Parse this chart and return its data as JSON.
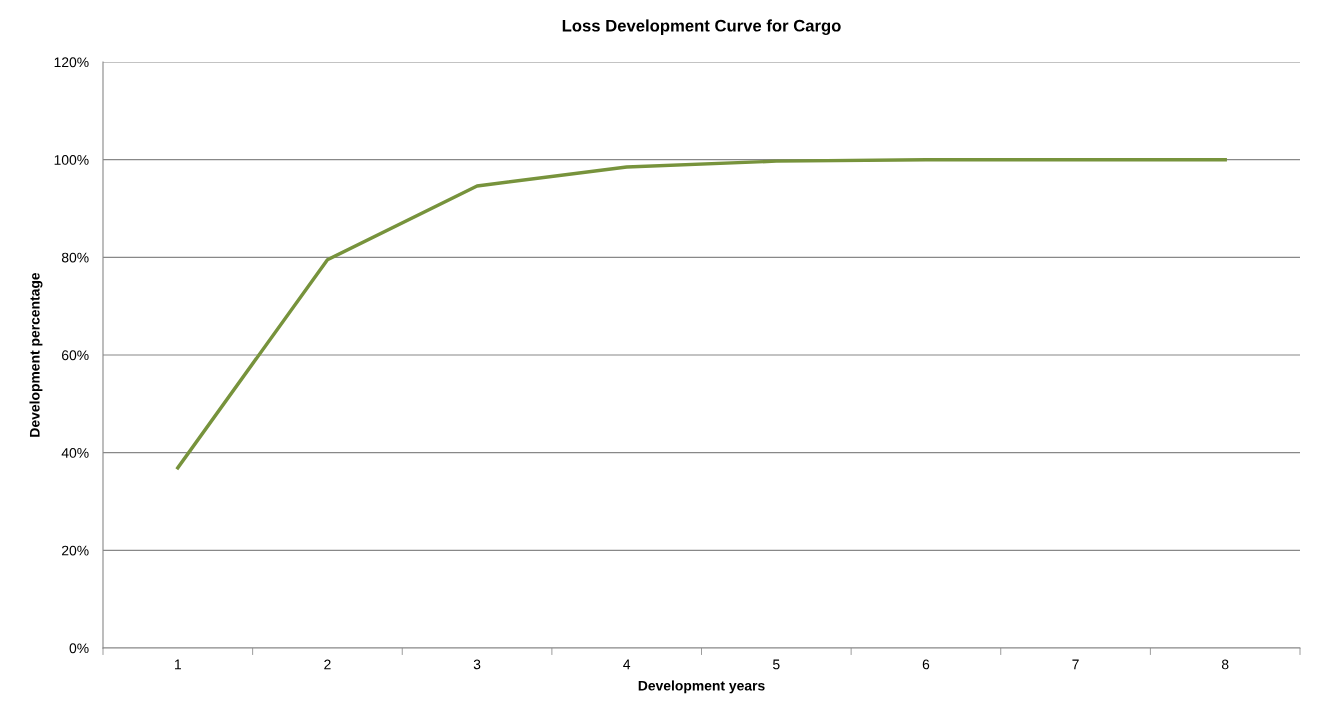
{
  "chart_data": {
    "type": "line",
    "title": "Loss Development Curve for Cargo",
    "xlabel": "Development years",
    "ylabel": "Development percentage",
    "categories": [
      "1",
      "2",
      "3",
      "4",
      "5",
      "6",
      "7",
      "8"
    ],
    "series": [
      {
        "color": "#77933c",
        "values": [
          36.9,
          79.5,
          94.6,
          98.5,
          99.7,
          100,
          100,
          100
        ]
      }
    ],
    "ylim": [
      0,
      120
    ],
    "yticks": [
      {
        "value": 0,
        "label": "0%"
      },
      {
        "value": 20,
        "label": "20%"
      },
      {
        "value": 40,
        "label": "40%"
      },
      {
        "value": 60,
        "label": "60%"
      },
      {
        "value": 80,
        "label": "80%"
      },
      {
        "value": 100,
        "label": "100%"
      },
      {
        "value": 120,
        "label": "120%"
      }
    ],
    "grid": "y",
    "marker": "none",
    "line_style": "solid"
  }
}
